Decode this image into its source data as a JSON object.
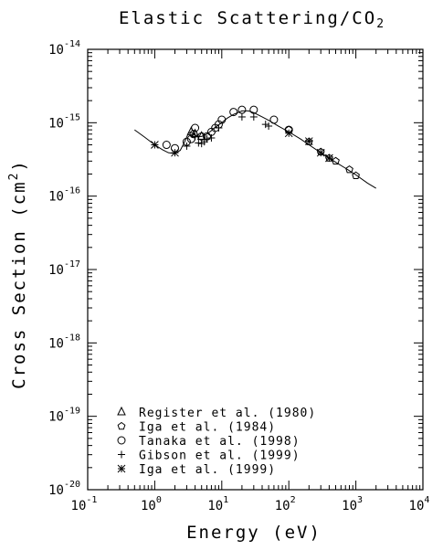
{
  "chart_data": {
    "type": "scatter",
    "title": "Elastic Scattering/CO",
    "title_subscript": "2",
    "xlabel": "Energy (eV)",
    "ylabel_prefix": "Cross Section (cm",
    "ylabel_sup": "2",
    "ylabel_suffix": ")",
    "x_scale": "log",
    "y_scale": "log",
    "xlim": [
      0.1,
      10000
    ],
    "ylim": [
      1e-20,
      1e-14
    ],
    "x_ticks": [
      {
        "value": 0.1,
        "base": "10",
        "exp": "-1"
      },
      {
        "value": 1,
        "base": "10",
        "exp": "0"
      },
      {
        "value": 10,
        "base": "10",
        "exp": "1"
      },
      {
        "value": 100,
        "base": "10",
        "exp": "2"
      },
      {
        "value": 1000,
        "base": "10",
        "exp": "3"
      },
      {
        "value": 10000,
        "base": "10",
        "exp": "4"
      }
    ],
    "y_ticks": [
      {
        "value": 1e-14,
        "base": "10",
        "exp": "-14"
      },
      {
        "value": 1e-15,
        "base": "10",
        "exp": "-15"
      },
      {
        "value": 1e-16,
        "base": "10",
        "exp": "-16"
      },
      {
        "value": 1e-17,
        "base": "10",
        "exp": "-17"
      },
      {
        "value": 1e-18,
        "base": "10",
        "exp": "-18"
      },
      {
        "value": 1e-19,
        "base": "10",
        "exp": "-19"
      },
      {
        "value": 1e-20,
        "base": "10",
        "exp": "-20"
      }
    ],
    "grid": false,
    "legend_position": "bottom-left",
    "recommended_curve": {
      "x": [
        0.5,
        0.7,
        1.0,
        1.3,
        1.6,
        2.0,
        2.4,
        2.8,
        3.2,
        3.6,
        4.0,
        4.5,
        5.0,
        6.0,
        7.0,
        8.0,
        10,
        12,
        15,
        20,
        25,
        30,
        40,
        50,
        70,
        100,
        150,
        200,
        300,
        500,
        700,
        1000,
        1500,
        2000
      ],
      "y": [
        8e-16,
        6.4e-16,
        5e-16,
        4.3e-16,
        3.9e-16,
        3.8e-16,
        4.2e-16,
        5.5e-16,
        7.3e-16,
        7.3e-16,
        6.8e-16,
        6.5e-16,
        6.5e-16,
        7e-16,
        7.8e-16,
        8.7e-16,
        1e-15,
        1.15e-15,
        1.3e-15,
        1.45e-15,
        1.45e-15,
        1.37e-15,
        1.2e-15,
        1.08e-15,
        9e-16,
        7.5e-16,
        6e-16,
        5e-16,
        3.9e-16,
        2.9e-16,
        2.4e-16,
        1.95e-16,
        1.5e-16,
        1.28e-16
      ]
    },
    "series": [
      {
        "name": "Register et al. (1980)",
        "marker": "triangle",
        "x": [
          3.5,
          4.0,
          5.0
        ],
        "y": [
          7.5e-16,
          7e-16,
          6.5e-16
        ]
      },
      {
        "name": "Iga et al. (1984)",
        "marker": "pentagon",
        "x": [
          100,
          200,
          300,
          400,
          500,
          800,
          1000
        ],
        "y": [
          8e-16,
          5.5e-16,
          4e-16,
          3.3e-16,
          3e-16,
          2.3e-16,
          1.9e-16
        ]
      },
      {
        "name": "Tanaka et al. (1998)",
        "marker": "circle",
        "x": [
          1.5,
          2.0,
          3.0,
          3.5,
          3.8,
          4.0,
          5.0,
          6.0,
          7.0,
          8.0,
          9.0,
          10,
          15,
          20,
          30,
          60,
          100
        ],
        "y": [
          5e-16,
          4.5e-16,
          5.5e-16,
          6e-16,
          7e-16,
          8.5e-16,
          6.5e-16,
          6.5e-16,
          7.5e-16,
          8.5e-16,
          9.5e-16,
          1.1e-15,
          1.4e-15,
          1.5e-15,
          1.5e-15,
          1.1e-15,
          8e-16
        ]
      },
      {
        "name": "Gibson et al. (1999)",
        "marker": "plus",
        "x": [
          3.0,
          4.0,
          4.5,
          5.0,
          5.5,
          6.0,
          7.0,
          9.0,
          20,
          30,
          45,
          50
        ],
        "y": [
          4.8e-16,
          6.5e-16,
          5.3e-16,
          5.2e-16,
          5.5e-16,
          6e-16,
          6.2e-16,
          8.5e-16,
          1.2e-15,
          1.2e-15,
          9.5e-16,
          9e-16
        ]
      },
      {
        "name": "Iga et al. (1999)",
        "marker": "star",
        "x": [
          1.0,
          2.0,
          100,
          200,
          300,
          400
        ],
        "y": [
          5e-16,
          3.9e-16,
          7.2e-16,
          5.6e-16,
          3.9e-16,
          3.3e-16
        ]
      }
    ]
  }
}
